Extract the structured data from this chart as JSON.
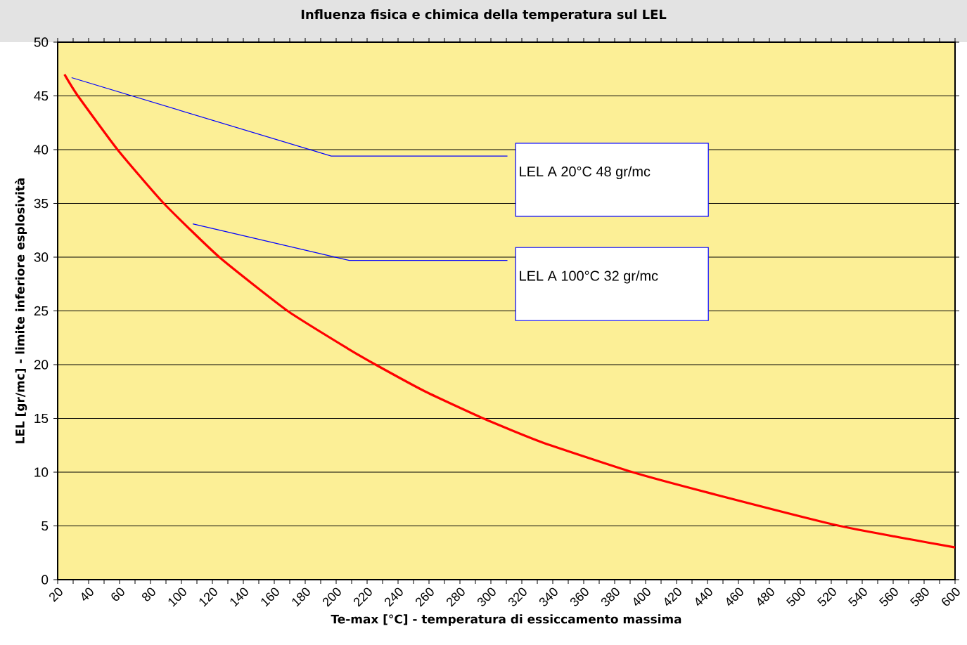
{
  "chart_data": {
    "type": "line",
    "title": "Influenza fisica e chimica della temperatura sul LEL",
    "xlabel": "Te-max [°C] - temperatura di essiccamento massima",
    "ylabel": "LEL [gr/mc] - limite inferiore esplosività",
    "x": [
      24.4,
      32.6,
      58.7,
      88.6,
      124.5,
      168.6,
      207.5,
      225.5,
      257.6,
      295.1,
      332.7,
      391.6,
      442.9,
      525.5,
      600
    ],
    "values": [
      47.0,
      45.1,
      40.0,
      35.0,
      30.0,
      25.0,
      21.5,
      20.0,
      17.5,
      15.0,
      12.8,
      10.0,
      8.0,
      5.0,
      3.0
    ],
    "color": "#ff0000",
    "line_style": "solid",
    "grid": "y",
    "xlim": [
      20,
      600
    ],
    "ylim": [
      0,
      50
    ],
    "xticks": [
      20,
      {
        "value": 30,
        "label": null
      },
      40,
      {
        "value": 50,
        "label": null
      },
      60,
      {
        "value": 70,
        "label": null
      },
      80,
      {
        "value": 90,
        "label": null
      },
      100,
      {
        "value": 110,
        "label": null
      },
      120,
      {
        "value": 130,
        "label": null
      },
      140,
      {
        "value": 150,
        "label": null
      },
      160,
      {
        "value": 170,
        "label": null
      },
      180,
      {
        "value": 190,
        "label": null
      },
      200,
      {
        "value": 210,
        "label": null
      },
      220,
      {
        "value": 230,
        "label": null
      },
      240,
      {
        "value": 250,
        "label": null
      },
      260,
      {
        "value": 270,
        "label": null
      },
      280,
      {
        "value": 290,
        "label": null
      },
      300,
      {
        "value": 310,
        "label": null
      },
      320,
      {
        "value": 330,
        "label": null
      },
      340,
      {
        "value": 350,
        "label": null
      },
      360,
      {
        "value": 370,
        "label": null
      },
      380,
      {
        "value": 390,
        "label": null
      },
      400,
      {
        "value": 410,
        "label": null
      },
      420,
      {
        "value": 430,
        "label": null
      },
      440,
      {
        "value": 450,
        "label": null
      },
      460,
      {
        "value": 470,
        "label": null
      },
      480,
      {
        "value": 490,
        "label": null
      },
      500,
      {
        "value": 510,
        "label": null
      },
      520,
      {
        "value": 530,
        "label": null
      },
      540,
      {
        "value": 550,
        "label": null
      },
      560,
      {
        "value": 570,
        "label": null
      },
      580,
      {
        "value": 590,
        "label": null
      },
      600
    ],
    "yticks": [
      0,
      5,
      10,
      15,
      20,
      25,
      30,
      35,
      40,
      45,
      50
    ],
    "annotations": [
      "LEL A 20°C 48 gr/mc",
      "LEL A 100°C 32 gr/mc"
    ]
  }
}
